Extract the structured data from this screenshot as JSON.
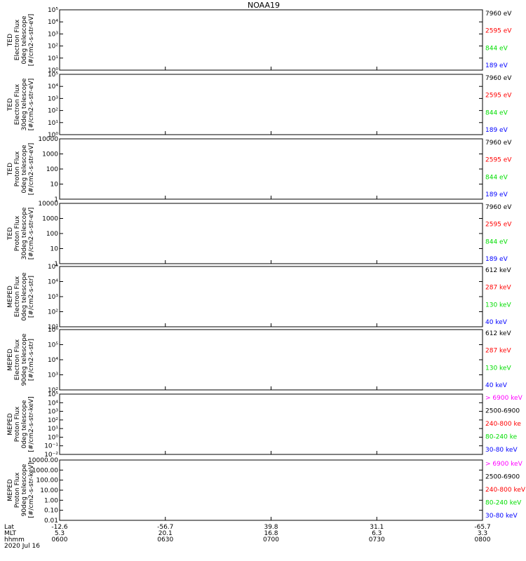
{
  "title": "NOAA19",
  "colors": {
    "black": "#000000",
    "red": "#ff0000",
    "green": "#00dd00",
    "blue": "#0000ff",
    "magenta": "#ff00ff"
  },
  "chart_data": [
    {
      "type": "line",
      "ylabel": [
        "TED",
        "Electron Flux",
        "0deg telescope",
        "[#/cm2-s-str-eV]"
      ],
      "y_scale": "log",
      "ylim": [
        1,
        100000
      ],
      "y_ticks": [
        "10⁰",
        "10¹",
        "10²",
        "10³",
        "10⁴",
        "10⁵"
      ],
      "legend": [
        {
          "label": "7960 eV",
          "color": "black"
        },
        {
          "label": "2595 eV",
          "color": "red"
        },
        {
          "label": "844 eV",
          "color": "green"
        },
        {
          "label": "189 eV",
          "color": "blue"
        }
      ]
    },
    {
      "type": "line",
      "ylabel": [
        "TED",
        "Electron Flux",
        "30deg telescope",
        "[#/cm2-s-str-eV]"
      ],
      "y_scale": "log",
      "ylim": [
        1,
        100000
      ],
      "y_ticks": [
        "10⁰",
        "10¹",
        "10²",
        "10³",
        "10⁴",
        "10⁵"
      ],
      "legend": [
        {
          "label": "7960 eV",
          "color": "black"
        },
        {
          "label": "2595 eV",
          "color": "red"
        },
        {
          "label": "844 eV",
          "color": "green"
        },
        {
          "label": "189 eV",
          "color": "blue"
        }
      ]
    },
    {
      "type": "line",
      "ylabel": [
        "TED",
        "Proton Flux",
        "0deg telescope",
        "[#/cm2-s-str-eV]"
      ],
      "y_scale": "log",
      "ylim": [
        1,
        10000
      ],
      "y_ticks": [
        "1",
        "10",
        "100",
        "1000",
        "10000"
      ],
      "legend": [
        {
          "label": "7960 eV",
          "color": "black"
        },
        {
          "label": "2595 eV",
          "color": "red"
        },
        {
          "label": "844 eV",
          "color": "green"
        },
        {
          "label": "189 eV",
          "color": "blue"
        }
      ]
    },
    {
      "type": "line",
      "ylabel": [
        "TED",
        "Proton Flux",
        "30deg telescope",
        "[#/cm2-s-str-eV]"
      ],
      "y_scale": "log",
      "ylim": [
        1,
        10000
      ],
      "y_ticks": [
        "1",
        "10",
        "100",
        "1000",
        "10000"
      ],
      "legend": [
        {
          "label": "7960 eV",
          "color": "black"
        },
        {
          "label": "2595 eV",
          "color": "red"
        },
        {
          "label": "844 eV",
          "color": "green"
        },
        {
          "label": "189 eV",
          "color": "blue"
        }
      ]
    },
    {
      "type": "line",
      "ylabel": [
        "MEPED",
        "Electron Flux",
        "0deg telescope",
        "[#/cm2-s-str]"
      ],
      "y_scale": "log",
      "ylim": [
        10,
        100000
      ],
      "y_ticks": [
        "10¹",
        "10²",
        "10³",
        "10⁴",
        "10⁵"
      ],
      "legend": [
        {
          "label": "612 keV",
          "color": "black"
        },
        {
          "label": "287 keV",
          "color": "red"
        },
        {
          "label": "130 keV",
          "color": "green"
        },
        {
          "label": "40 keV",
          "color": "blue"
        }
      ]
    },
    {
      "type": "line",
      "ylabel": [
        "MEPED",
        "Electron Flux",
        "90deg telescope",
        "[#/cm2-s-str]"
      ],
      "y_scale": "log",
      "ylim": [
        100,
        1000000
      ],
      "y_ticks": [
        "10²",
        "10³",
        "10⁴",
        "10⁵",
        "10⁶"
      ],
      "legend": [
        {
          "label": "612 keV",
          "color": "black"
        },
        {
          "label": "287 keV",
          "color": "red"
        },
        {
          "label": "130 keV",
          "color": "green"
        },
        {
          "label": "40 keV",
          "color": "blue"
        }
      ]
    },
    {
      "type": "line",
      "ylabel": [
        "MEPED",
        "Proton Flux",
        "0deg telescope",
        "[#/cm2-s-str-keV]"
      ],
      "y_scale": "log",
      "ylim": [
        0.01,
        100000
      ],
      "y_ticks": [
        "10⁻²",
        "10⁻¹",
        "10⁰",
        "10¹",
        "10²",
        "10³",
        "10⁴",
        "10⁵"
      ],
      "legend": [
        {
          "label": "> 6900 keV",
          "color": "magenta"
        },
        {
          "label": "2500-6900",
          "color": "black"
        },
        {
          "label": "240-800 ke",
          "color": "red"
        },
        {
          "label": "80-240 ke",
          "color": "green"
        },
        {
          "label": "30-80 keV",
          "color": "blue"
        }
      ]
    },
    {
      "type": "line",
      "ylabel": [
        "MEPED",
        "Proton Flux",
        "90deg telescope",
        "[#/cm2-s-str-keV]"
      ],
      "y_scale": "log",
      "ylim": [
        0.01,
        10000
      ],
      "y_ticks": [
        "0.01",
        "0.10",
        "1.00",
        "10.00",
        "100.00",
        "1000.00",
        "10000.00"
      ],
      "legend": [
        {
          "label": "> 6900 keV",
          "color": "magenta"
        },
        {
          "label": "2500-6900",
          "color": "black"
        },
        {
          "label": "240-800 keV",
          "color": "red"
        },
        {
          "label": "80-240 keV",
          "color": "green"
        },
        {
          "label": "30-80 keV",
          "color": "blue"
        }
      ]
    }
  ],
  "xaxis": {
    "row_labels": [
      "Lat",
      "MLT",
      "hhmm",
      "2020 Jul 16"
    ],
    "ticks": [
      {
        "lat": "-12.6",
        "mlt": "5.3",
        "hhmm": "0600"
      },
      {
        "lat": "-56.7",
        "mlt": "20.1",
        "hhmm": "0630"
      },
      {
        "lat": "39.8",
        "mlt": "16.8",
        "hhmm": "0700"
      },
      {
        "lat": "31.1",
        "mlt": "6.3",
        "hhmm": "0730"
      },
      {
        "lat": "-65.7",
        "mlt": "3.3",
        "hhmm": "0800"
      }
    ]
  }
}
